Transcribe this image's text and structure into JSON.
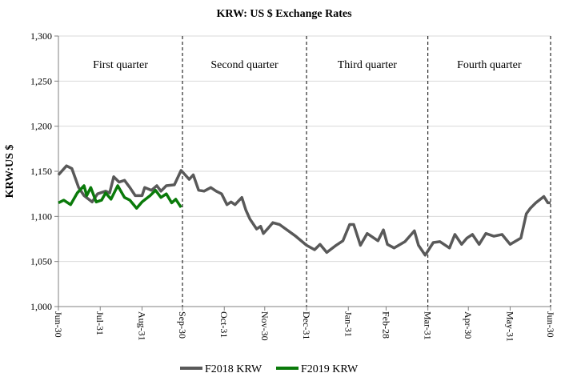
{
  "chart_data": {
    "type": "line",
    "title": "KRW: US $ Exchange Rates",
    "xlabel": "",
    "ylabel": "KRW:US $",
    "ylim": [
      1000,
      1300
    ],
    "yticks": [
      "1,000",
      "1,050",
      "1,100",
      "1,150",
      "1,200",
      "1,250",
      "1,300"
    ],
    "ytick_values": [
      1000,
      1050,
      1100,
      1150,
      1200,
      1250,
      1300
    ],
    "xticks": [
      "Jun-30",
      "Jul-31",
      "Aug-31",
      "Sep-30",
      "Oct-31",
      "Nov-30",
      "Dec-31",
      "Jan-31",
      "Feb-28",
      "Mar-31",
      "Apr-30",
      "May-31",
      "Jun-30"
    ],
    "grid": "horizontal",
    "legend_position": "bottom",
    "quarter_dividers": [
      "Sep-30",
      "Dec-31",
      "Mar-31",
      "Jun-30"
    ],
    "annotations": [
      "First quarter",
      "Second quarter",
      "Third quarter",
      "Fourth quarter"
    ],
    "series": [
      {
        "name": "F2018 KRW",
        "color": "#595959",
        "x": [
          "Jun-30",
          "Jul-06",
          "Jul-10",
          "Jul-15",
          "Jul-19",
          "Jul-25",
          "Jul-29",
          "Aug-04",
          "Aug-07",
          "Aug-10",
          "Aug-14",
          "Aug-18",
          "Aug-22",
          "Aug-26",
          "Aug-31",
          "Sep-02",
          "Sep-07",
          "Sep-11",
          "Sep-14",
          "Sep-18",
          "Sep-24",
          "Sep-29",
          "Oct-02",
          "Oct-05",
          "Oct-08",
          "Oct-12",
          "Oct-16",
          "Oct-21",
          "Oct-25",
          "Oct-29",
          "Nov-02",
          "Nov-05",
          "Nov-08",
          "Nov-13",
          "Nov-16",
          "Nov-19",
          "Nov-24",
          "Nov-27",
          "Nov-29",
          "Dec-02",
          "Dec-06",
          "Dec-11",
          "Dec-23",
          "Dec-31",
          "Jan-06",
          "Jan-10",
          "Jan-15",
          "Jan-22",
          "Jan-27",
          "Feb-01",
          "Feb-04",
          "Feb-09",
          "Feb-14",
          "Feb-22",
          "Feb-26",
          "Mar-01",
          "Mar-06",
          "Mar-14",
          "Mar-21",
          "Mar-24",
          "Mar-29",
          "Apr-04",
          "Apr-09",
          "Apr-16",
          "Apr-20",
          "Apr-25",
          "Apr-29",
          "May-03",
          "May-08",
          "May-13",
          "May-19",
          "May-25",
          "May-31",
          "Jun-08",
          "Jun-12",
          "Jun-15",
          "Jun-19",
          "Jun-25",
          "Jun-28",
          "Jun-30"
        ],
        "y": [
          1146,
          1156,
          1153,
          1132,
          1123,
          1116,
          1125,
          1128,
          1126,
          1144,
          1138,
          1140,
          1132,
          1123,
          1123,
          1132,
          1129,
          1134,
          1128,
          1134,
          1135,
          1151,
          1146,
          1141,
          1146,
          1129,
          1128,
          1132,
          1128,
          1125,
          1113,
          1116,
          1113,
          1121,
          1107,
          1097,
          1086,
          1089,
          1081,
          1086,
          1093,
          1091,
          1078,
          1068,
          1063,
          1069,
          1060,
          1068,
          1073,
          1091,
          1091,
          1068,
          1081,
          1073,
          1085,
          1069,
          1065,
          1072,
          1084,
          1068,
          1057,
          1071,
          1072,
          1065,
          1080,
          1069,
          1076,
          1080,
          1069,
          1081,
          1078,
          1080,
          1069,
          1076,
          1103,
          1109,
          1115,
          1122,
          1115,
          1115
        ]
      },
      {
        "name": "F2019 KRW",
        "color": "#0a7a0a",
        "x": [
          "Jun-30",
          "Jul-04",
          "Jul-09",
          "Jul-14",
          "Jul-19",
          "Jul-21",
          "Jul-24",
          "Jul-28",
          "Aug-01",
          "Aug-04",
          "Aug-08",
          "Aug-13",
          "Aug-18",
          "Aug-22",
          "Aug-27",
          "Aug-31",
          "Sep-06",
          "Sep-10",
          "Sep-14",
          "Sep-18",
          "Sep-22",
          "Sep-25",
          "Sep-29"
        ],
        "y": [
          1115,
          1118,
          1113,
          1126,
          1134,
          1123,
          1132,
          1116,
          1118,
          1126,
          1119,
          1134,
          1121,
          1118,
          1109,
          1116,
          1123,
          1129,
          1121,
          1125,
          1115,
          1119,
          1110
        ]
      }
    ]
  }
}
